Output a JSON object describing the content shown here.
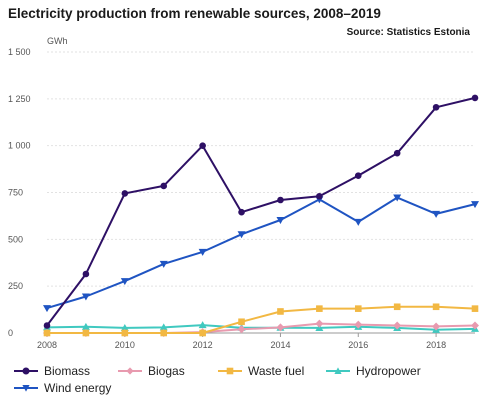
{
  "chart_data": {
    "type": "line",
    "title": "Electricity production from renewable sources, 2008–2019",
    "source": "Source: Statistics Estonia",
    "ylabel": "GWh",
    "xlabel": "",
    "x": [
      2008,
      2009,
      2010,
      2011,
      2012,
      2013,
      2014,
      2015,
      2016,
      2017,
      2018,
      2019
    ],
    "xlim": [
      2008,
      2019
    ],
    "ylim": [
      0,
      1500
    ],
    "x_ticks": [
      2008,
      2010,
      2012,
      2014,
      2016,
      2018
    ],
    "y_ticks": [
      0,
      250,
      500,
      750,
      1000,
      1250,
      1500
    ],
    "y_tick_labels": [
      "0",
      "250",
      "500",
      "750",
      "1 000",
      "1 250",
      "1 500"
    ],
    "grid": "horizontal",
    "legend_position": "bottom",
    "series": [
      {
        "name": "Biomass",
        "color": "#2e1065",
        "marker": "circle",
        "values": [
          40,
          315,
          745,
          785,
          1000,
          645,
          710,
          730,
          840,
          960,
          1205,
          1255
        ]
      },
      {
        "name": "Biogas",
        "color": "#e89aaf",
        "marker": "diamond",
        "values": [
          0,
          0,
          0,
          0,
          5,
          20,
          30,
          50,
          45,
          40,
          35,
          40
        ]
      },
      {
        "name": "Waste fuel",
        "color": "#f2b843",
        "marker": "square",
        "values": [
          0,
          0,
          0,
          0,
          0,
          60,
          115,
          130,
          130,
          140,
          140,
          130
        ]
      },
      {
        "name": "Hydropower",
        "color": "#40c9c0",
        "marker": "triangle-up",
        "values": [
          30,
          33,
          27,
          30,
          42,
          28,
          28,
          27,
          33,
          27,
          17,
          22
        ]
      },
      {
        "name": "Wind energy",
        "color": "#1f54c2",
        "marker": "triangle-down",
        "values": [
          133,
          195,
          277,
          369,
          433,
          527,
          603,
          713,
          593,
          723,
          636,
          688
        ]
      }
    ]
  }
}
